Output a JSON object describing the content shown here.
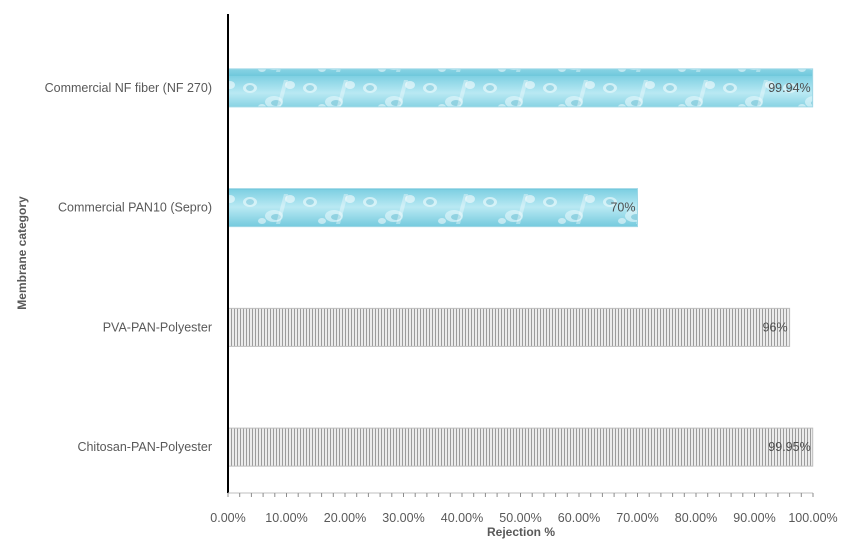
{
  "chart_data": {
    "type": "bar",
    "orientation": "horizontal",
    "categories": [
      "Commercial NF fiber (NF 270)",
      "Commercial PAN10 (Sepro)",
      "PVA-PAN-Polyester",
      "Chitosan-PAN-Polyester"
    ],
    "values": [
      99.94,
      70,
      96,
      99.95
    ],
    "data_labels": [
      "99.94%",
      "70%",
      "96%",
      "99.95%"
    ],
    "bar_fills": [
      "water-texture",
      "water-texture",
      "striped-gray",
      "striped-gray"
    ],
    "xlabel": "Rejection %",
    "ylabel": "Membrane category",
    "xlim": [
      0,
      100
    ],
    "x_ticks": [
      "0.00%",
      "10.00%",
      "20.00%",
      "30.00%",
      "40.00%",
      "50.00%",
      "60.00%",
      "70.00%",
      "80.00%",
      "90.00%",
      "100.00%"
    ],
    "grid": false,
    "legend": "none",
    "colors": {
      "water_light": "#c9eef5",
      "water_mid": "#8fd6e6",
      "water_dark": "#5cc1d8",
      "stripe_light": "#e8e8e8",
      "stripe_dark": "#9a9a9a",
      "axis": "#000000",
      "text": "#595959"
    }
  }
}
